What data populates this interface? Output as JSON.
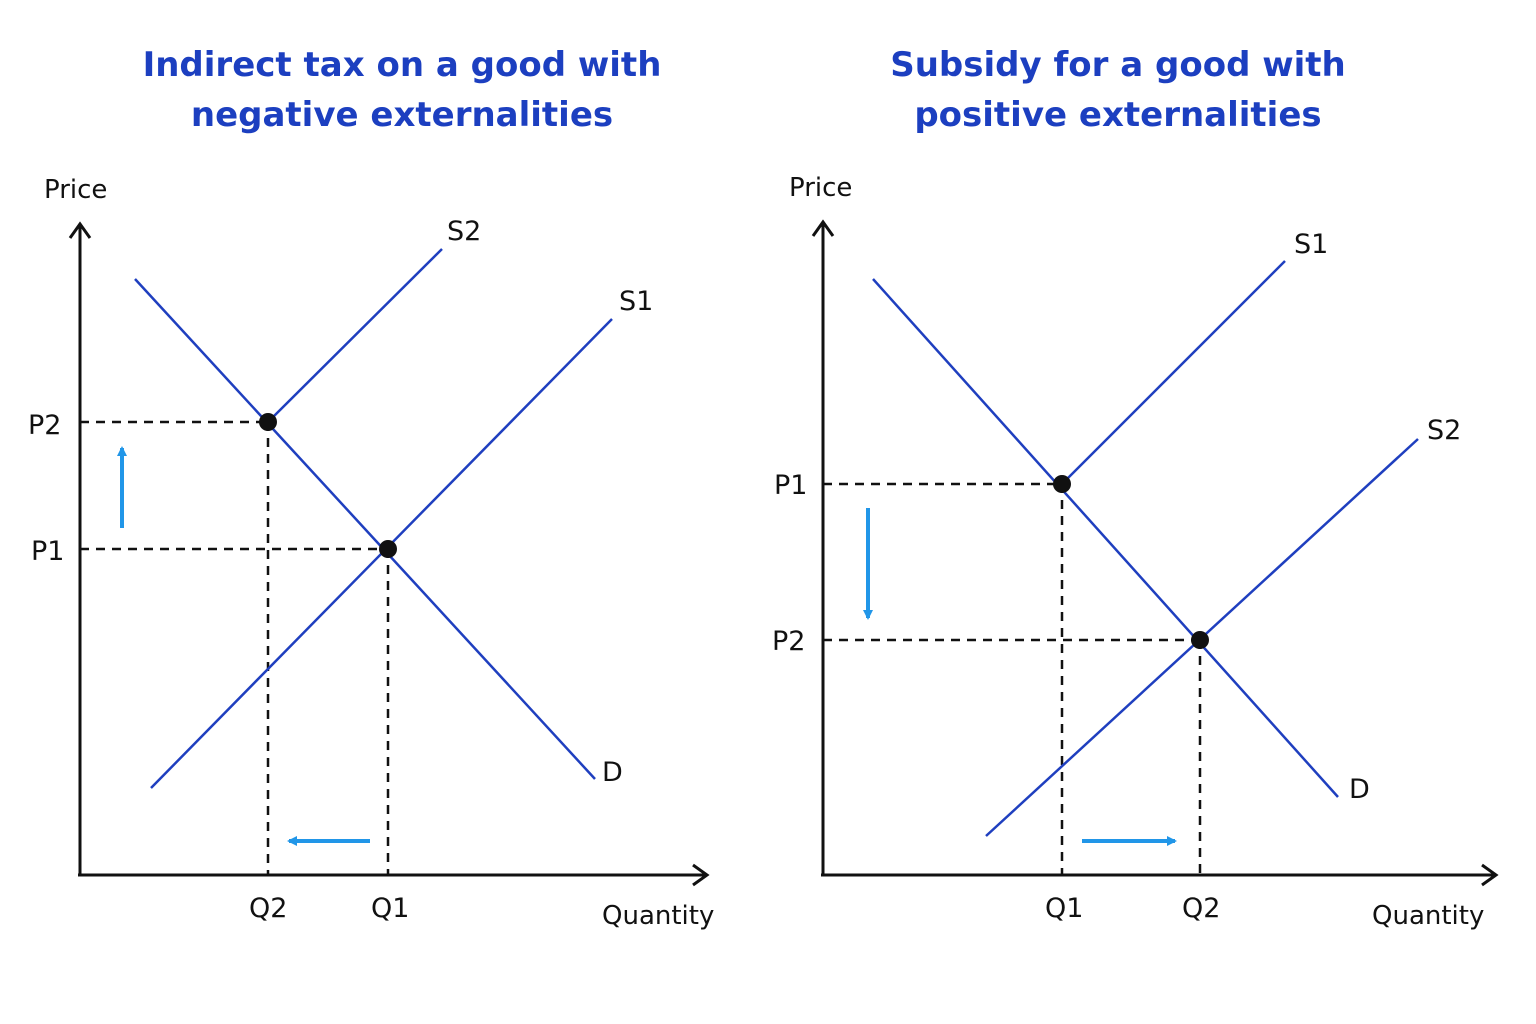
{
  "colors": {
    "title": "#1c3fc0",
    "curve": "#1f3fbf",
    "axis": "#111111",
    "arrow": "#2196e8",
    "point": "#111111"
  },
  "left": {
    "title_line1": "Indirect tax on a good with",
    "title_line2": "negative externalities",
    "y_axis_label": "Price",
    "x_axis_label": "Quantity",
    "curve_labels": {
      "supply_shifted": "S2",
      "supply_original": "S1",
      "demand": "D"
    },
    "price_labels": {
      "p_high": "P2",
      "p_low": "P1"
    },
    "quantity_labels": {
      "q_low": "Q2",
      "q_high": "Q1"
    },
    "price_arrow_direction": "up",
    "quantity_arrow_direction": "left"
  },
  "right": {
    "title_line1": "Subsidy for a good with",
    "title_line2": "positive externalities",
    "y_axis_label": "Price",
    "x_axis_label": "Quantity",
    "curve_labels": {
      "supply_original": "S1",
      "supply_shifted": "S2",
      "demand": "D"
    },
    "price_labels": {
      "p_high": "P1",
      "p_low": "P2"
    },
    "quantity_labels": {
      "q_low": "Q1",
      "q_high": "Q2"
    },
    "price_arrow_direction": "down",
    "quantity_arrow_direction": "right"
  }
}
